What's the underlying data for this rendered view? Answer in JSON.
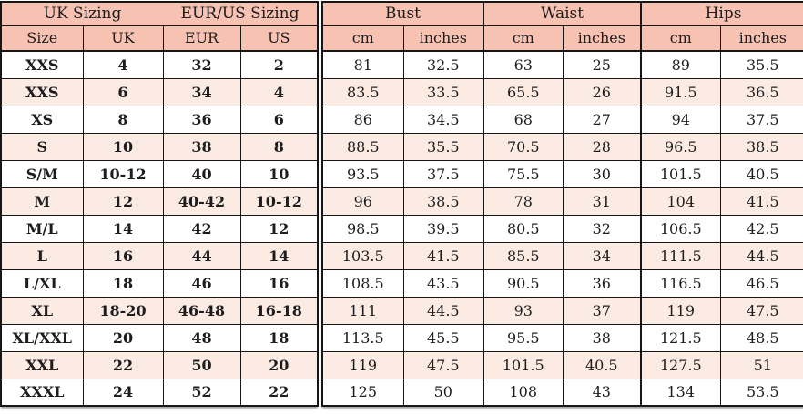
{
  "colors": {
    "header_bg": "#f8c2b3",
    "alt_row_bg": "#fcebe3",
    "border": "#161616",
    "text": "#1d1d1d",
    "page_bg": "#ffffff"
  },
  "table": {
    "left": {
      "group_uk": "UK Sizing",
      "group_eurus": "EUR/US Sizing",
      "columns": [
        "Size",
        "UK",
        "EUR",
        "US"
      ]
    },
    "right": {
      "groups": [
        {
          "label": "Bust"
        },
        {
          "label": "Waist"
        },
        {
          "label": "Hips"
        }
      ],
      "sub_columns": [
        "cm",
        "inches",
        "cm",
        "inches",
        "cm",
        "inches"
      ]
    },
    "rows": [
      {
        "size": "XXS",
        "uk": "4",
        "eur": "32",
        "us": "2",
        "bust_cm": "81",
        "bust_in": "32.5",
        "waist_cm": "63",
        "waist_in": "25",
        "hips_cm": "89",
        "hips_in": "35.5"
      },
      {
        "size": "XXS",
        "uk": "6",
        "eur": "34",
        "us": "4",
        "bust_cm": "83.5",
        "bust_in": "33.5",
        "waist_cm": "65.5",
        "waist_in": "26",
        "hips_cm": "91.5",
        "hips_in": "36.5"
      },
      {
        "size": "XS",
        "uk": "8",
        "eur": "36",
        "us": "6",
        "bust_cm": "86",
        "bust_in": "34.5",
        "waist_cm": "68",
        "waist_in": "27",
        "hips_cm": "94",
        "hips_in": "37.5"
      },
      {
        "size": "S",
        "uk": "10",
        "eur": "38",
        "us": "8",
        "bust_cm": "88.5",
        "bust_in": "35.5",
        "waist_cm": "70.5",
        "waist_in": "28",
        "hips_cm": "96.5",
        "hips_in": "38.5"
      },
      {
        "size": "S/M",
        "uk": "10-12",
        "eur": "40",
        "us": "10",
        "bust_cm": "93.5",
        "bust_in": "37.5",
        "waist_cm": "75.5",
        "waist_in": "30",
        "hips_cm": "101.5",
        "hips_in": "40.5"
      },
      {
        "size": "M",
        "uk": "12",
        "eur": "40-42",
        "us": "10-12",
        "bust_cm": "96",
        "bust_in": "38.5",
        "waist_cm": "78",
        "waist_in": "31",
        "hips_cm": "104",
        "hips_in": "41.5"
      },
      {
        "size": "M/L",
        "uk": "14",
        "eur": "42",
        "us": "12",
        "bust_cm": "98.5",
        "bust_in": "39.5",
        "waist_cm": "80.5",
        "waist_in": "32",
        "hips_cm": "106.5",
        "hips_in": "42.5"
      },
      {
        "size": "L",
        "uk": "16",
        "eur": "44",
        "us": "14",
        "bust_cm": "103.5",
        "bust_in": "41.5",
        "waist_cm": "85.5",
        "waist_in": "34",
        "hips_cm": "111.5",
        "hips_in": "44.5"
      },
      {
        "size": "L/XL",
        "uk": "18",
        "eur": "46",
        "us": "16",
        "bust_cm": "108.5",
        "bust_in": "43.5",
        "waist_cm": "90.5",
        "waist_in": "36",
        "hips_cm": "116.5",
        "hips_in": "46.5"
      },
      {
        "size": "XL",
        "uk": "18-20",
        "eur": "46-48",
        "us": "16-18",
        "bust_cm": "111",
        "bust_in": "44.5",
        "waist_cm": "93",
        "waist_in": "37",
        "hips_cm": "119",
        "hips_in": "47.5"
      },
      {
        "size": "XL/XXL",
        "uk": "20",
        "eur": "48",
        "us": "18",
        "bust_cm": "113.5",
        "bust_in": "45.5",
        "waist_cm": "95.5",
        "waist_in": "38",
        "hips_cm": "121.5",
        "hips_in": "48.5"
      },
      {
        "size": "XXL",
        "uk": "22",
        "eur": "50",
        "us": "20",
        "bust_cm": "119",
        "bust_in": "47.5",
        "waist_cm": "101.5",
        "waist_in": "40.5",
        "hips_cm": "127.5",
        "hips_in": "51"
      },
      {
        "size": "XXXL",
        "uk": "24",
        "eur": "52",
        "us": "22",
        "bust_cm": "125",
        "bust_in": "50",
        "waist_cm": "108",
        "waist_in": "43",
        "hips_cm": "134",
        "hips_in": "53.5"
      }
    ]
  }
}
